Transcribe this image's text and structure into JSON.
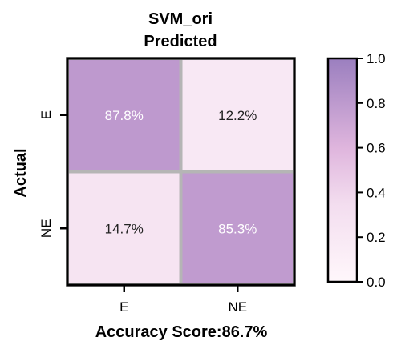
{
  "chart_data": {
    "type": "heatmap",
    "title_line1": "SVM_ori",
    "title_line2": "Predicted",
    "xlabel": "Accuracy Score:86.7%",
    "ylabel": "Actual",
    "x_categories": [
      "E",
      "NE"
    ],
    "y_categories": [
      "E",
      "NE"
    ],
    "values": [
      [
        0.878,
        0.122
      ],
      [
        0.147,
        0.853
      ]
    ],
    "cell_labels": [
      [
        "87.8%",
        "12.2%"
      ],
      [
        "14.7%",
        "85.3%"
      ]
    ],
    "colorbar": {
      "min": 0.0,
      "max": 1.0,
      "ticks": [
        0.0,
        0.2,
        0.4,
        0.6,
        0.8,
        1.0
      ],
      "tick_labels": [
        "0.0",
        "0.2",
        "0.4",
        "0.6",
        "0.8",
        "1.0"
      ]
    },
    "colors": {
      "low": "#fff7fb",
      "mid": "#e2b8de",
      "high": "#9b7fbf",
      "cell_gap": "#b5b5b5",
      "text_light": "#ffffff",
      "text_dark": "#222222"
    }
  }
}
